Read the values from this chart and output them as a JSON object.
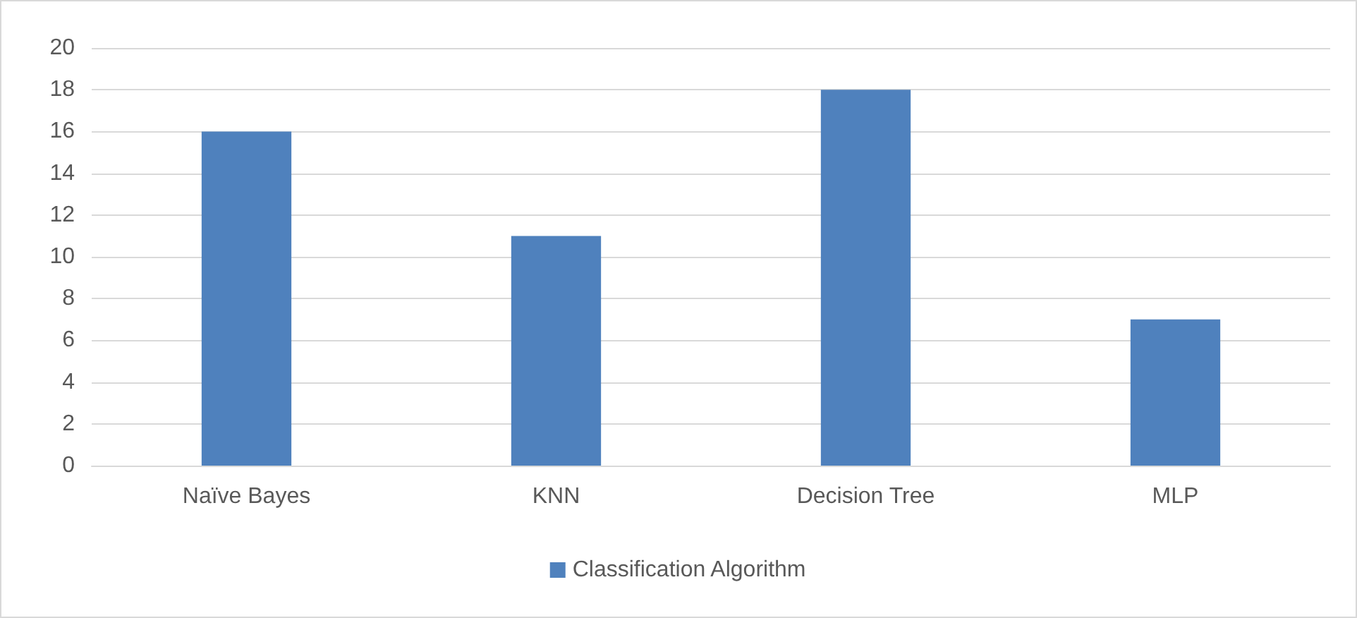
{
  "chart_data": {
    "type": "bar",
    "categories": [
      "Naïve Bayes",
      "KNN",
      "Decision Tree",
      "MLP"
    ],
    "series": [
      {
        "name": "Classification Algorithm",
        "color": "#4f81bd",
        "values": [
          16,
          11,
          18,
          7
        ]
      }
    ],
    "ylim": [
      0,
      20
    ],
    "yticks": [
      0,
      2,
      4,
      6,
      8,
      10,
      12,
      14,
      16,
      18,
      20
    ],
    "grid": "y",
    "legend": "bottom"
  }
}
